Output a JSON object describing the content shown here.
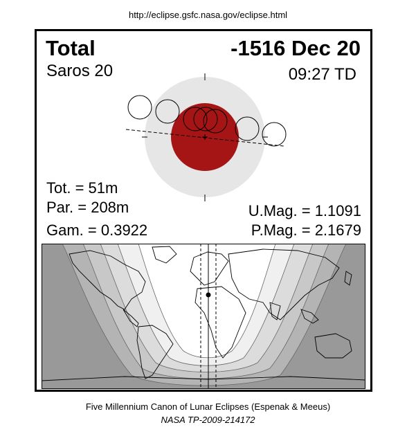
{
  "source_url": "http://eclipse.gsfc.nasa.gov/eclipse.html",
  "eclipse": {
    "type": "Total",
    "date": "-1516 Dec 20",
    "saros": "Saros  20",
    "time": "09:27 TD",
    "totality": "Tot. =  51m",
    "partial": "Par. = 208m",
    "gamma": "Gam. = 0.3922",
    "umbral_magnitude": "U.Mag. = 1.1091",
    "penumbral_magnitude": "P.Mag. = 2.1679"
  },
  "colors": {
    "umbra": "#a51515",
    "penumbra": "#e6e6e6",
    "map_night": "#999999",
    "map_bands": [
      "#b4b4b4",
      "#c8c8c8",
      "#dcdcdc",
      "#f0f0f0"
    ]
  },
  "footer": {
    "canon": "Five Millennium Canon of Lunar Eclipses (Espenak & Meeus)",
    "tp": "NASA TP-2009-214172"
  }
}
